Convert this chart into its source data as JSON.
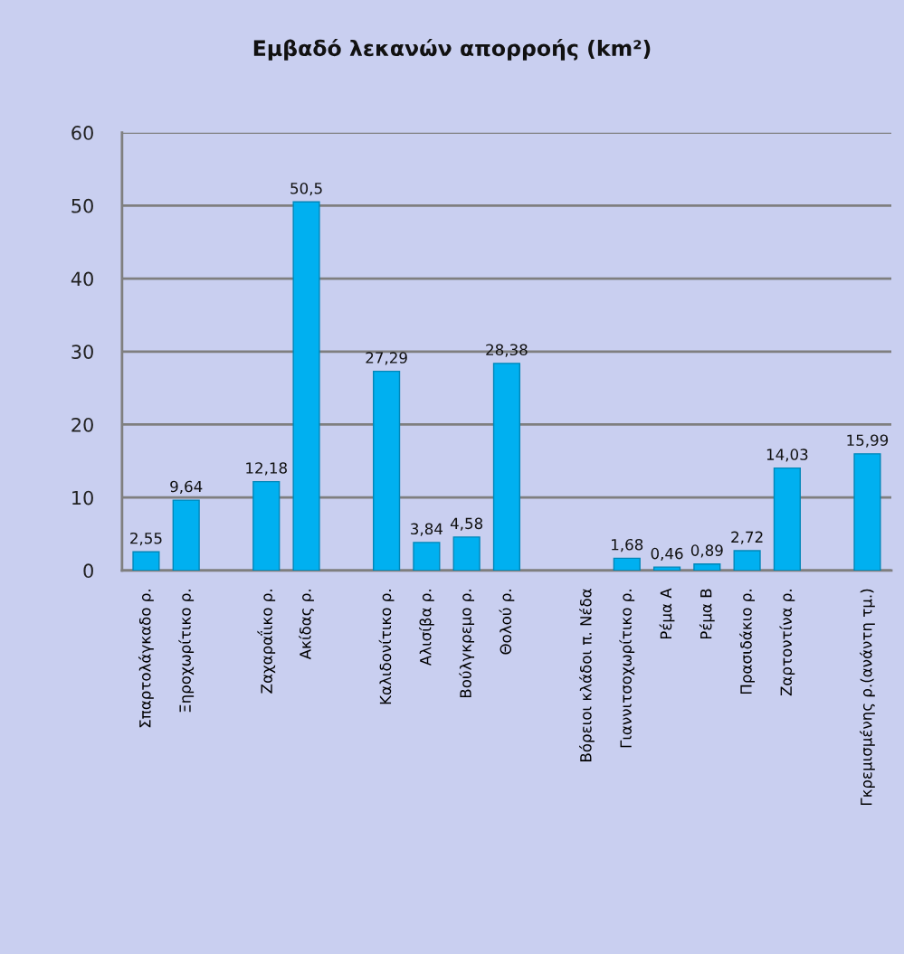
{
  "chart_data": {
    "type": "bar",
    "title": "Εμβαδό λεκανών απορροής (km²)",
    "categories": [
      "Σπαρτολάγκαδο ρ.",
      "Ξηροχωρίτικο ρ.",
      null,
      "Ζαχαραΐικο ρ.",
      "Ακίδας ρ.",
      null,
      "Καλιδονίτικο ρ.",
      "Αλισίβα ρ.",
      "Βούλγκρεμο ρ.",
      "Θολού ρ.",
      null,
      "Βόρειοι κλάδοι π. Νέδα",
      "Γιαννιτσοχωρίτικο ρ.",
      "Ρέμα Α",
      "Ρέμα Β",
      "Πρασιδάκιο ρ.",
      "Ζαρτοντίνα ρ.",
      null,
      "Γκρεμισμένης ρ.(ανάντη τμ.)"
    ],
    "values": [
      2.55,
      9.64,
      null,
      12.18,
      50.5,
      null,
      27.29,
      3.84,
      4.58,
      28.38,
      null,
      null,
      1.68,
      0.46,
      0.89,
      2.72,
      14.03,
      null,
      15.99
    ],
    "value_labels": [
      "2,55",
      "9,64",
      null,
      "12,18",
      "50,5",
      null,
      "27,29",
      "3,84",
      "4,58",
      "28,38",
      null,
      null,
      "1,68",
      "0,46",
      "0,89",
      "2,72",
      "14,03",
      null,
      "15,99"
    ],
    "color": "#00b0f0",
    "ylim": [
      0,
      60
    ],
    "yticks": [
      0,
      10,
      20,
      30,
      40,
      50,
      60
    ],
    "grid": "y",
    "legend": false
  }
}
